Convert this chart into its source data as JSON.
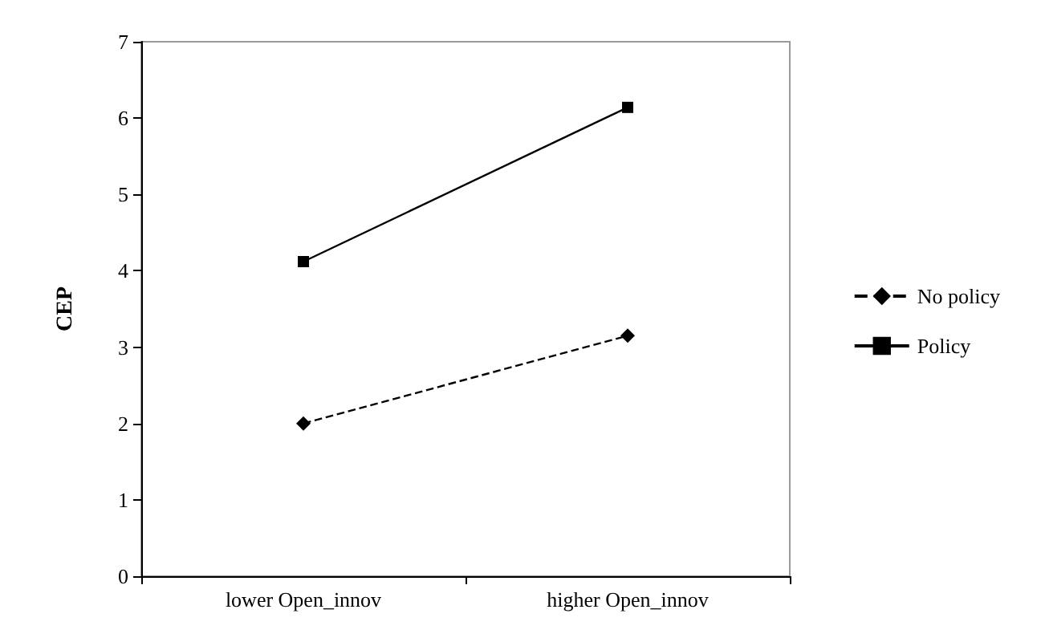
{
  "chart_data": {
    "type": "line",
    "ylabel": "CEP",
    "categories": [
      "lower Open_innov",
      "higher Open_innov"
    ],
    "series": [
      {
        "name": "No policy",
        "color": "#000000",
        "values": [
          2.0,
          3.15
        ],
        "marker": "diamond",
        "line_style": "dashed"
      },
      {
        "name": "Policy",
        "color": "#000000",
        "values": [
          4.12,
          6.14
        ],
        "marker": "square",
        "line_style": "solid"
      }
    ],
    "ylim": [
      0,
      7
    ],
    "yticks": [
      0,
      1,
      2,
      3,
      4,
      5,
      6,
      7
    ],
    "grid": false,
    "legend": "right"
  }
}
